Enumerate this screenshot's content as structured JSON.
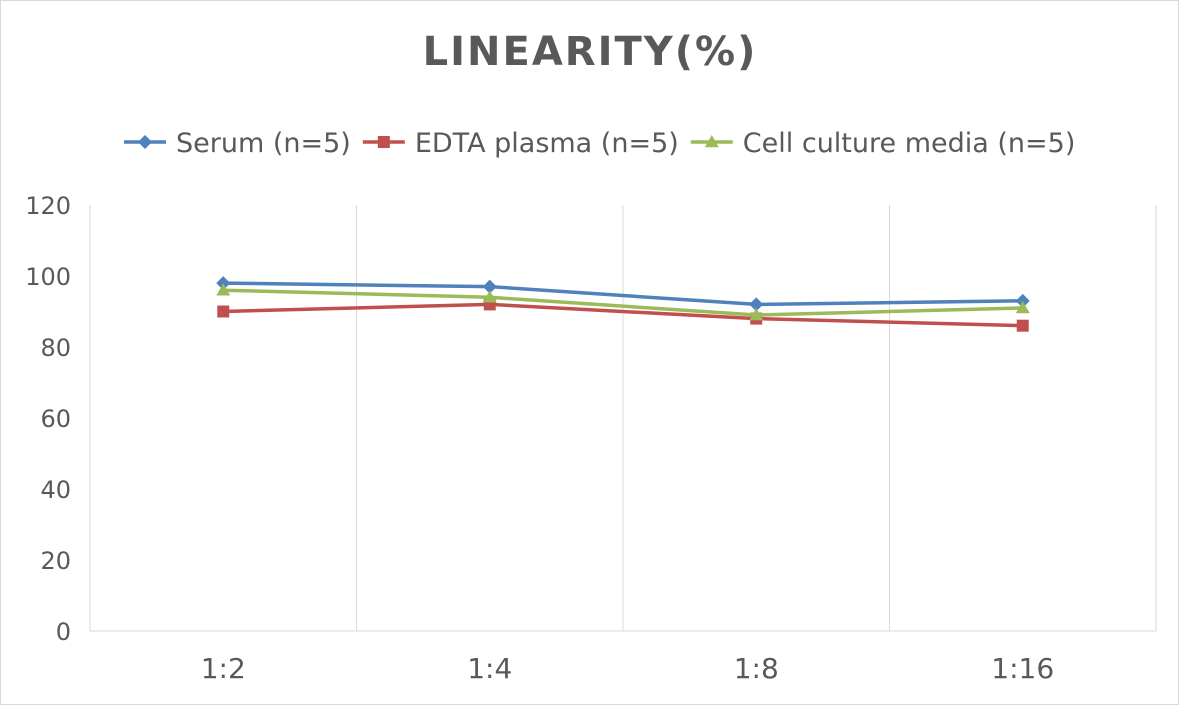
{
  "chart_data": {
    "type": "line",
    "title": "LINEARITY(%)",
    "xlabel": "",
    "ylabel": "",
    "categories": [
      "1:2",
      "1:4",
      "1:8",
      "1:16"
    ],
    "ylim": [
      0,
      120
    ],
    "yticks": [
      0,
      20,
      40,
      60,
      80,
      100,
      120
    ],
    "grid": {
      "vertical": true,
      "horizontal": false
    },
    "legend_position": "top",
    "series": [
      {
        "name": "Serum (n=5)",
        "values": [
          98,
          97,
          92,
          93
        ],
        "color": "#4f81bd",
        "marker": "diamond"
      },
      {
        "name": "EDTA plasma (n=5)",
        "values": [
          90,
          92,
          88,
          86
        ],
        "color": "#c0504d",
        "marker": "square"
      },
      {
        "name": "Cell culture media (n=5)",
        "values": [
          96,
          94,
          89,
          91
        ],
        "color": "#9bbb59",
        "marker": "triangle"
      }
    ]
  }
}
